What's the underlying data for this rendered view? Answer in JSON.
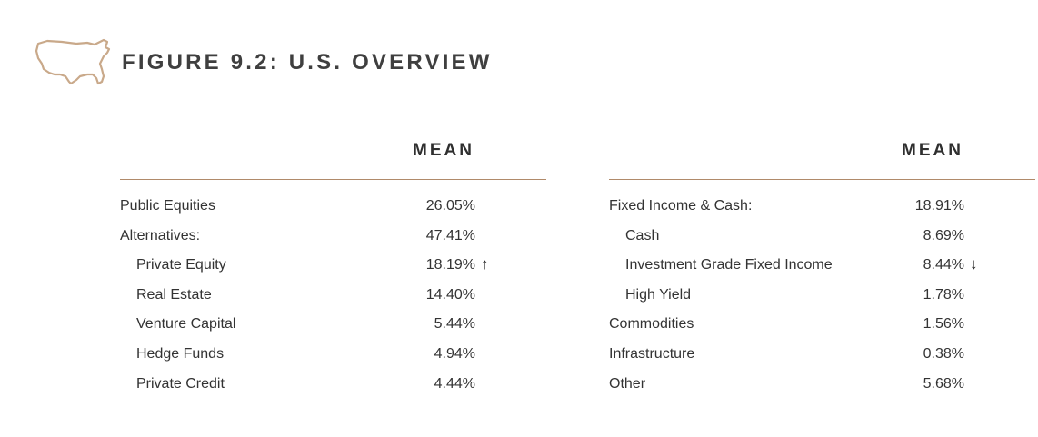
{
  "figure": {
    "title": "FIGURE 9.2: U.S. OVERVIEW",
    "icon": "usa-map-outline-icon",
    "accent_color": "#b08a6a"
  },
  "left_table": {
    "header": "MEAN",
    "rows": [
      {
        "label": "Public Equities",
        "value": "26.05%",
        "indent": false,
        "trend": ""
      },
      {
        "label": "Alternatives:",
        "value": "47.41%",
        "indent": false,
        "trend": ""
      },
      {
        "label": "Private Equity",
        "value": "18.19%",
        "indent": true,
        "trend": "↑"
      },
      {
        "label": "Real Estate",
        "value": "14.40%",
        "indent": true,
        "trend": ""
      },
      {
        "label": "Venture Capital",
        "value": "5.44%",
        "indent": true,
        "trend": ""
      },
      {
        "label": "Hedge Funds",
        "value": "4.94%",
        "indent": true,
        "trend": ""
      },
      {
        "label": "Private Credit",
        "value": "4.44%",
        "indent": true,
        "trend": ""
      }
    ]
  },
  "right_table": {
    "header": "MEAN",
    "rows": [
      {
        "label": "Fixed Income & Cash:",
        "value": "18.91%",
        "indent": false,
        "trend": ""
      },
      {
        "label": "Cash",
        "value": "8.69%",
        "indent": true,
        "trend": ""
      },
      {
        "label": "Investment Grade Fixed Income",
        "value": "8.44%",
        "indent": true,
        "trend": "↓"
      },
      {
        "label": "High Yield",
        "value": "1.78%",
        "indent": true,
        "trend": ""
      },
      {
        "label": "Commodities",
        "value": "1.56%",
        "indent": false,
        "trend": ""
      },
      {
        "label": "Infrastructure",
        "value": "0.38%",
        "indent": false,
        "trend": ""
      },
      {
        "label": "Other",
        "value": "5.68%",
        "indent": false,
        "trend": ""
      }
    ]
  }
}
